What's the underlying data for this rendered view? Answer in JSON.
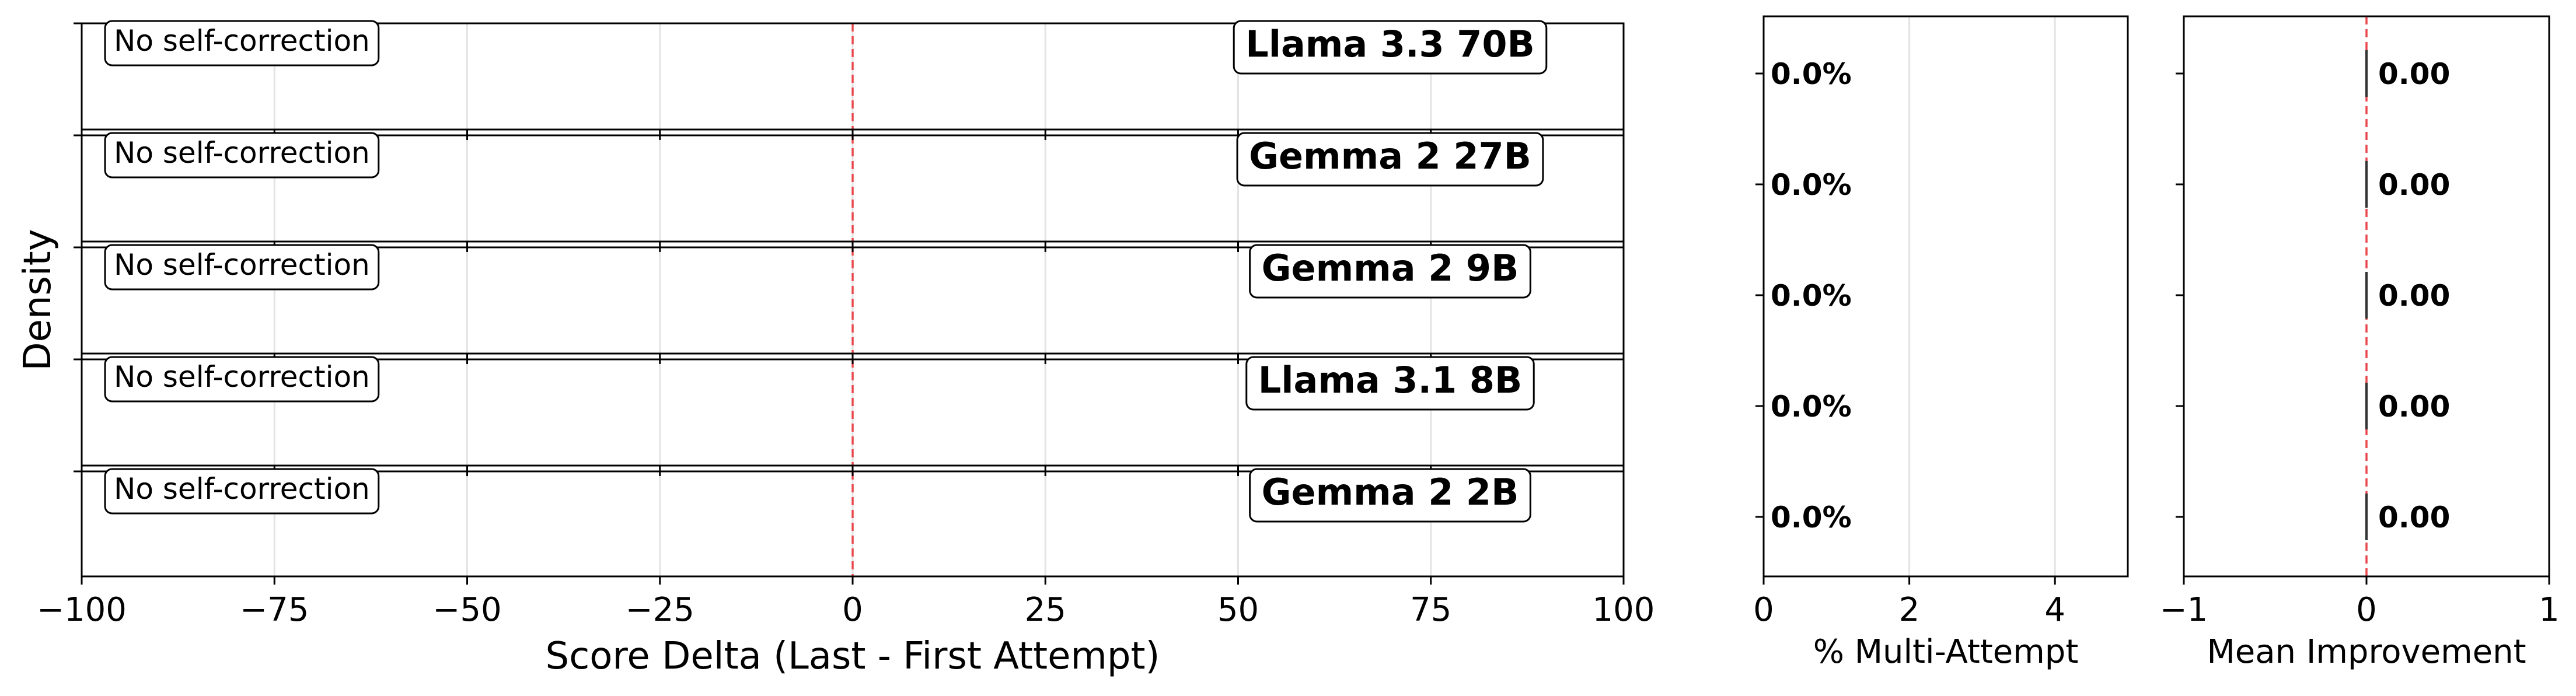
{
  "chart_data": [
    {
      "type": "density",
      "xlabel": "Score Delta (Last - First Attempt)",
      "ylabel": "Density",
      "xlim": [
        -100,
        100
      ],
      "xticks": [
        -100,
        -75,
        -50,
        -25,
        0,
        25,
        50,
        75,
        100
      ],
      "xtick_labels": [
        "−100",
        "−75",
        "−50",
        "−25",
        "0",
        "25",
        "50",
        "75",
        "100"
      ],
      "reference_line": 0,
      "reference_color": "#e8474c",
      "grid": true,
      "rows": [
        {
          "model": "Llama 3.3 70B",
          "annotation": "No self-correction"
        },
        {
          "model": "Gemma 2 27B",
          "annotation": "No self-correction"
        },
        {
          "model": "Gemma 2 9B",
          "annotation": "No self-correction"
        },
        {
          "model": "Llama 3.1 8B",
          "annotation": "No self-correction"
        },
        {
          "model": "Gemma 2 2B",
          "annotation": "No self-correction"
        }
      ]
    },
    {
      "type": "bar",
      "orientation": "horizontal",
      "xlabel": "% Multi-Attempt",
      "xlim": [
        0,
        5
      ],
      "xticks": [
        0,
        2,
        4
      ],
      "xtick_labels": [
        "0",
        "2",
        "4"
      ],
      "grid": true,
      "values": [
        0.0,
        0.0,
        0.0,
        0.0,
        0.0
      ],
      "value_labels": [
        "0.0%",
        "0.0%",
        "0.0%",
        "0.0%",
        "0.0%"
      ]
    },
    {
      "type": "bar",
      "orientation": "horizontal",
      "xlabel": "Mean Improvement",
      "xlim": [
        -1,
        1
      ],
      "xticks": [
        -1,
        0,
        1
      ],
      "xtick_labels": [
        "−1",
        "0",
        "1"
      ],
      "reference_line": 0,
      "reference_color": "#e8474c",
      "grid": false,
      "values": [
        0.0,
        0.0,
        0.0,
        0.0,
        0.0
      ],
      "value_labels": [
        "0.00",
        "0.00",
        "0.00",
        "0.00",
        "0.00"
      ]
    }
  ]
}
